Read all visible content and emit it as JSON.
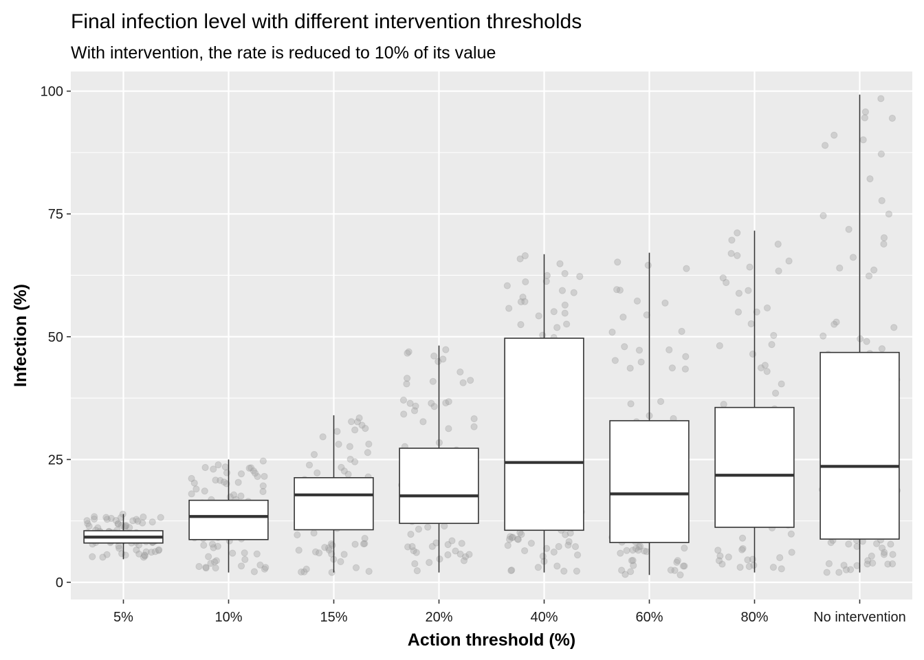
{
  "chart_data": {
    "type": "box",
    "title": "Final infection level with different intervention thresholds",
    "subtitle": "With intervention, the rate is reduced to 10% of its value",
    "xlabel": "Action threshold (%)",
    "ylabel": "Infection (%)",
    "ylim": [
      -3.5,
      104
    ],
    "yticks": [
      0,
      25,
      50,
      75,
      100
    ],
    "grid": true,
    "panel_color": "#ebebeb",
    "box_fill": "#ffffff",
    "box_stroke": "#333333",
    "point_color": "#a6a6a6",
    "categories": [
      "5%",
      "10%",
      "15%",
      "20%",
      "40%",
      "60%",
      "80%",
      "No intervention"
    ],
    "boxes": [
      {
        "category": "5%",
        "min": 4.7,
        "q1": 8.0,
        "median": 9.2,
        "q3": 10.5,
        "max": 13.9,
        "outliers": []
      },
      {
        "category": "10%",
        "min": 2.0,
        "q1": 8.7,
        "median": 13.4,
        "q3": 16.7,
        "max": 25.0,
        "outliers": []
      },
      {
        "category": "15%",
        "min": 2.0,
        "q1": 10.7,
        "median": 17.8,
        "q3": 21.3,
        "max": 34.0,
        "outliers": []
      },
      {
        "category": "20%",
        "min": 2.0,
        "q1": 12.0,
        "median": 17.6,
        "q3": 27.3,
        "max": 48.2,
        "outliers": []
      },
      {
        "category": "40%",
        "min": 2.0,
        "q1": 10.6,
        "median": 24.4,
        "q3": 49.7,
        "max": 66.8,
        "outliers": []
      },
      {
        "category": "60%",
        "min": 1.5,
        "q1": 8.1,
        "median": 18.0,
        "q3": 32.9,
        "max": 67.1,
        "outliers": []
      },
      {
        "category": "80%",
        "min": 2.0,
        "q1": 11.2,
        "median": 21.8,
        "q3": 35.6,
        "max": 71.6,
        "outliers": []
      },
      {
        "category": "No intervention",
        "min": 2.0,
        "q1": 8.8,
        "median": 23.6,
        "q3": 46.8,
        "max": 99.3,
        "outliers": []
      }
    ]
  }
}
